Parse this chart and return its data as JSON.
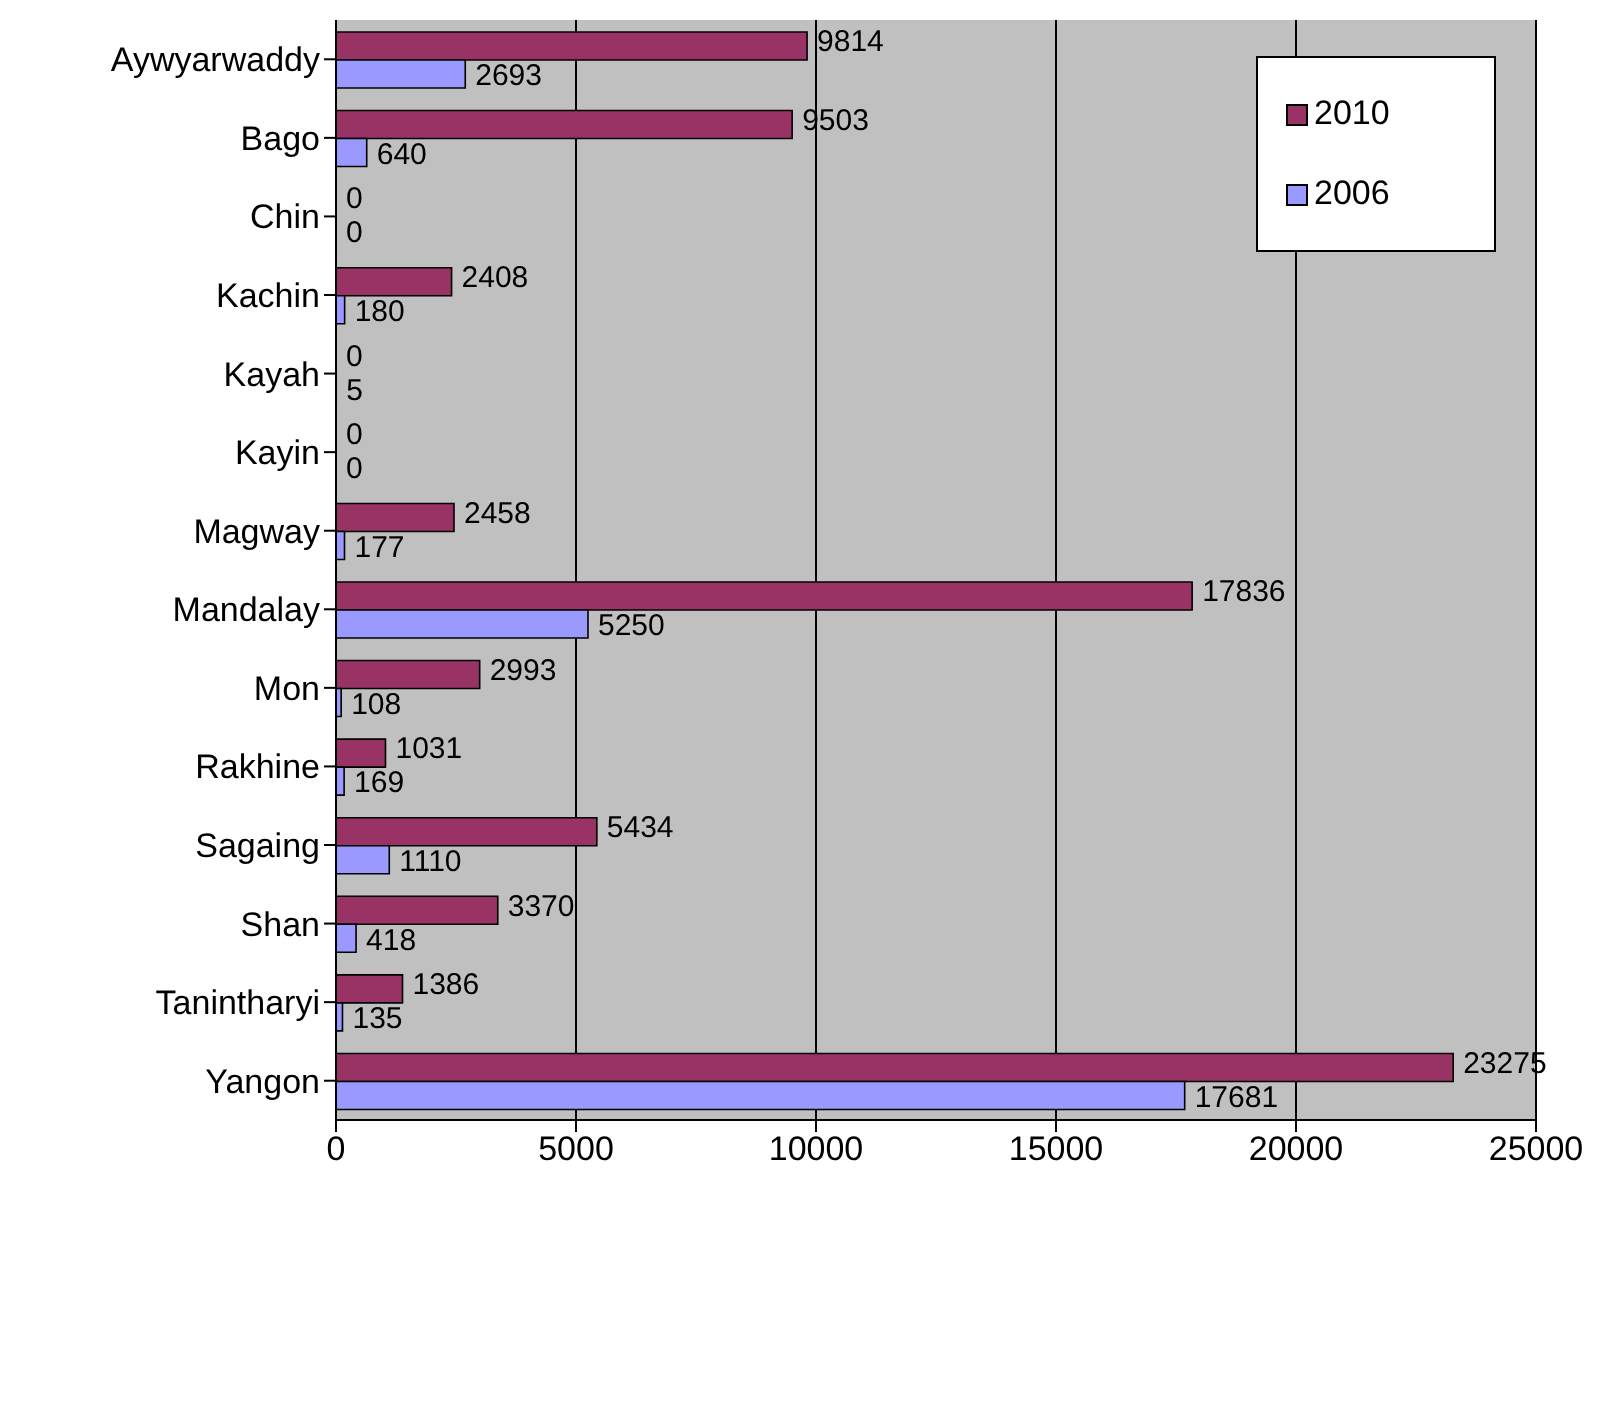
{
  "chart_data": {
    "type": "bar",
    "orientation": "horizontal",
    "categories": [
      "Aywyarwaddy",
      "Bago",
      "Chin",
      "Kachin",
      "Kayah",
      "Kayin",
      "Magway",
      "Mandalay",
      "Mon",
      "Rakhine",
      "Sagaing",
      "Shan",
      "Tanintharyi",
      "Yangon"
    ],
    "series": [
      {
        "name": "2010",
        "color": "#993366",
        "values": [
          9814,
          9503,
          0,
          2408,
          0,
          0,
          2458,
          17836,
          2993,
          1031,
          5434,
          3370,
          1386,
          23275
        ]
      },
      {
        "name": "2006",
        "color": "#9999ff",
        "values": [
          2693,
          640,
          0,
          180,
          5,
          0,
          177,
          5250,
          108,
          169,
          1110,
          418,
          135,
          17681
        ]
      }
    ],
    "xlim": [
      0,
      25000
    ],
    "xticks": [
      0,
      5000,
      10000,
      15000,
      20000,
      25000
    ],
    "grid": "x",
    "legend": "top right",
    "data_labels": true
  }
}
